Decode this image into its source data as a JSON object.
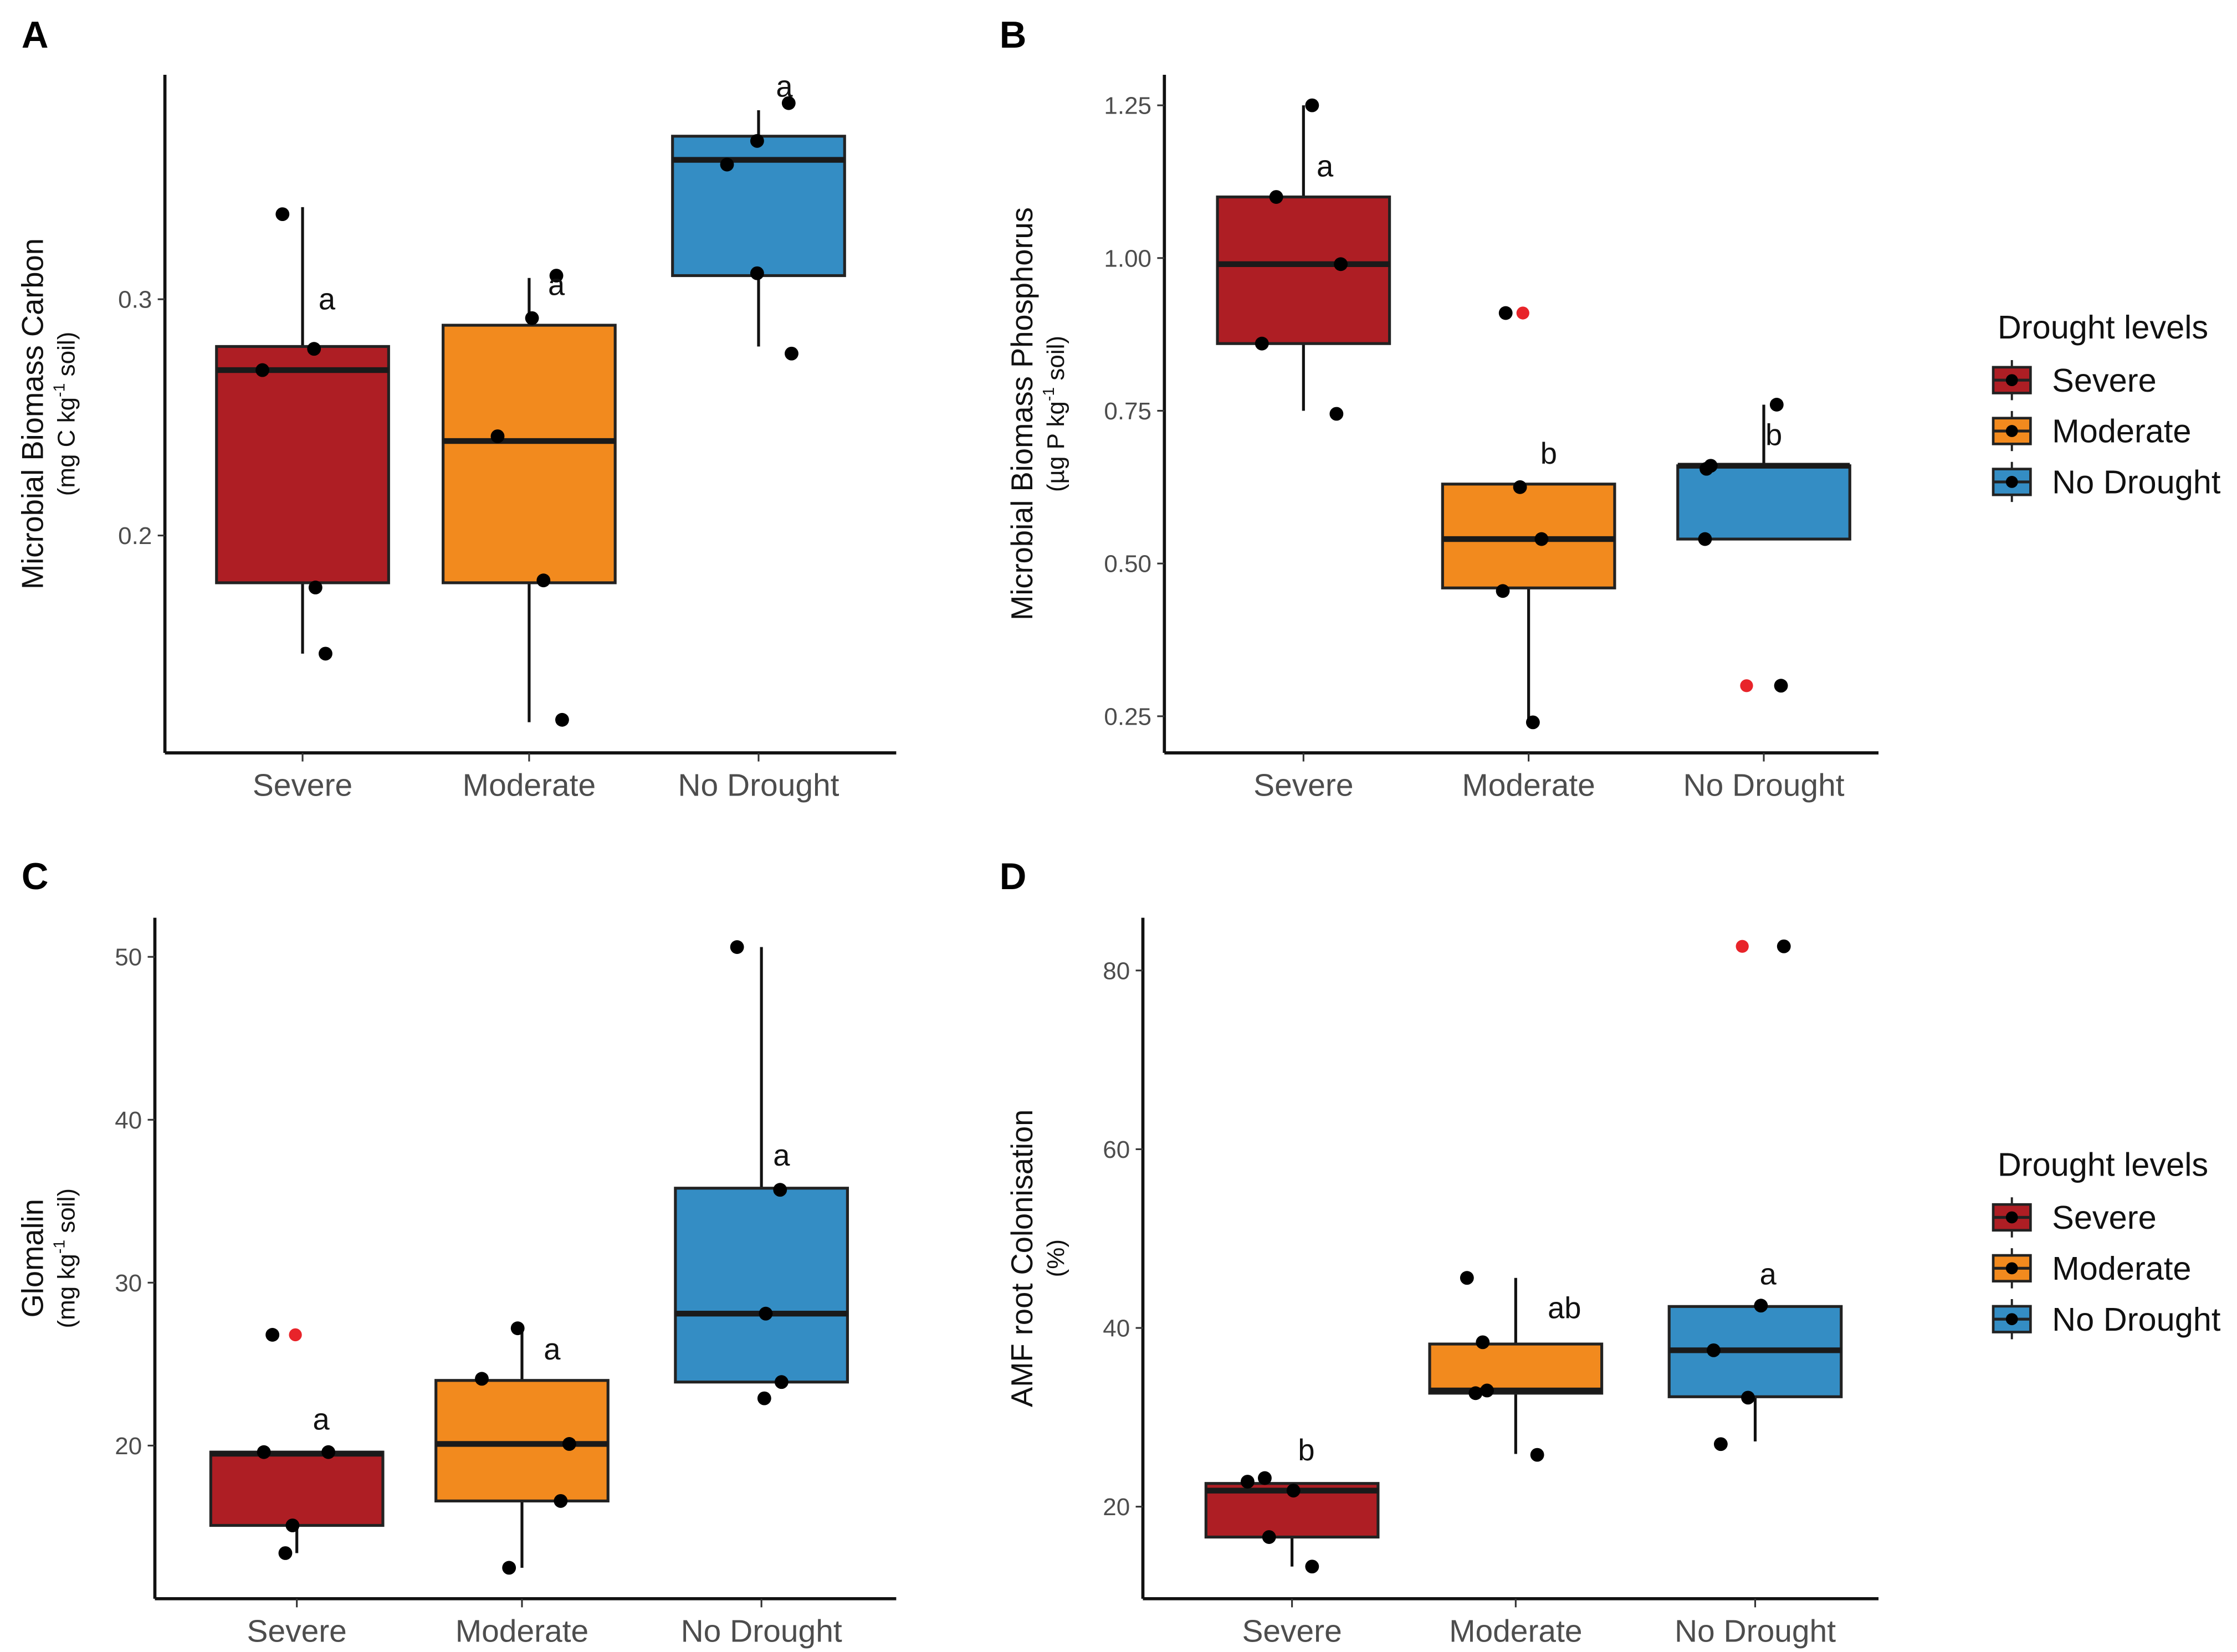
{
  "colors": {
    "Severe": "#ae1e24",
    "Moderate": "#f28a1e",
    "No Drought": "#348dc4",
    "outlier": "#e8242a",
    "point": "#000000"
  },
  "legend": {
    "title": "Drought levels",
    "items": [
      "Severe",
      "Moderate",
      "No Drought"
    ]
  },
  "chart_data": [
    {
      "panel": "A",
      "type": "box",
      "ylabel": "Microbial Biomass Carbon",
      "yunit": {
        "pre": "(mg C kg",
        "sup": "-1",
        "post": " soil)"
      },
      "categories": [
        "Severe",
        "Moderate",
        "No Drought"
      ],
      "yticks": [
        0.2,
        0.3
      ],
      "tick_labels": [
        "0.2",
        "0.3"
      ],
      "ylim": [
        0.108,
        0.395
      ],
      "boxes": [
        {
          "q1": 0.18,
          "median": 0.27,
          "q3": 0.28,
          "wlo": 0.15,
          "whi": 0.339,
          "points": [
            0.336,
            0.279,
            0.27,
            0.178,
            0.15
          ],
          "outliers": [],
          "sig": "a",
          "sig_y": 0.3
        },
        {
          "q1": 0.18,
          "median": 0.24,
          "q3": 0.289,
          "wlo": 0.121,
          "whi": 0.309,
          "points": [
            0.31,
            0.292,
            0.242,
            0.181,
            0.122
          ],
          "outliers": [],
          "sig": "a",
          "sig_y": 0.306
        },
        {
          "q1": 0.31,
          "median": 0.359,
          "q3": 0.369,
          "wlo": 0.28,
          "whi": 0.38,
          "points": [
            0.383,
            0.367,
            0.357,
            0.311,
            0.277
          ],
          "outliers": [],
          "sig": "a",
          "sig_y": 0.39
        }
      ]
    },
    {
      "panel": "B",
      "type": "box",
      "ylabel": "Microbial Biomass Phosphorus",
      "yunit": {
        "pre": "(µg P kg",
        "sup": "-1",
        "post": " soil)"
      },
      "categories": [
        "Severe",
        "Moderate",
        "No Drought"
      ],
      "yticks": [
        0.25,
        0.5,
        0.75,
        1.0,
        1.25
      ],
      "tick_labels": [
        "0.25",
        "0.50",
        "0.75",
        "1.00",
        "1.25"
      ],
      "ylim": [
        0.19,
        1.3
      ],
      "boxes": [
        {
          "q1": 0.86,
          "median": 0.99,
          "q3": 1.1,
          "wlo": 0.75,
          "whi": 1.25,
          "points": [
            1.25,
            1.1,
            0.99,
            0.86,
            0.745
          ],
          "outliers": [],
          "sig": "a",
          "sig_y": 1.15
        },
        {
          "q1": 0.46,
          "median": 0.54,
          "q3": 0.63,
          "wlo": 0.243,
          "whi": 0.63,
          "points": [
            0.91,
            0.625,
            0.54,
            0.455,
            0.24
          ],
          "outliers": [
            0.91
          ],
          "sig": "b",
          "sig_y": 0.68
        },
        {
          "q1": 0.54,
          "median": 0.66,
          "q3": 0.66,
          "wlo": 0.54,
          "whi": 0.76,
          "points": [
            0.76,
            0.66,
            0.655,
            0.54,
            0.3
          ],
          "outliers": [
            0.3
          ],
          "sig": "b",
          "sig_y": 0.71
        }
      ]
    },
    {
      "panel": "C",
      "type": "box",
      "ylabel": "Glomalin",
      "yunit": {
        "pre": "(mg kg",
        "sup": "-1",
        "post": " soil)"
      },
      "categories": [
        "Severe",
        "Moderate",
        "No Drought"
      ],
      "yticks": [
        20,
        30,
        40,
        50
      ],
      "tick_labels": [
        "20",
        "30",
        "40",
        "50"
      ],
      "ylim": [
        10.6,
        52.4
      ],
      "boxes": [
        {
          "q1": 15.1,
          "median": 19.5,
          "q3": 19.6,
          "wlo": 13.4,
          "whi": 19.6,
          "points": [
            26.8,
            19.6,
            19.6,
            15.1,
            13.4
          ],
          "outliers": [
            26.8
          ],
          "sig": "a",
          "sig_y": 21.6
        },
        {
          "q1": 16.6,
          "median": 20.1,
          "q3": 24.0,
          "wlo": 12.5,
          "whi": 27.2,
          "points": [
            27.2,
            24.1,
            20.1,
            16.6,
            12.5
          ],
          "outliers": [],
          "sig": "a",
          "sig_y": 25.9
        },
        {
          "q1": 23.9,
          "median": 28.1,
          "q3": 35.8,
          "wlo": 23.9,
          "whi": 50.6,
          "points": [
            50.6,
            35.7,
            28.1,
            23.9,
            22.9
          ],
          "outliers": [],
          "sig": "a",
          "sig_y": 37.8
        }
      ]
    },
    {
      "panel": "D",
      "type": "box",
      "ylabel": "AMF root Colonisation",
      "yunit": {
        "pre": "(%)",
        "sup": "",
        "post": ""
      },
      "categories": [
        "Severe",
        "Moderate",
        "No Drought"
      ],
      "yticks": [
        20,
        40,
        60,
        80
      ],
      "tick_labels": [
        "20",
        "40",
        "60",
        "80"
      ],
      "ylim": [
        9.7,
        85.9
      ],
      "boxes": [
        {
          "q1": 16.6,
          "median": 21.8,
          "q3": 22.6,
          "wlo": 13.3,
          "whi": 22.6,
          "points": [
            23.2,
            22.8,
            21.8,
            16.6,
            13.3
          ],
          "outliers": [],
          "sig": "b",
          "sig_y": 26.3
        },
        {
          "q1": 32.7,
          "median": 33.0,
          "q3": 38.2,
          "wlo": 25.9,
          "whi": 45.6,
          "points": [
            45.6,
            38.4,
            33.0,
            32.7,
            25.8
          ],
          "outliers": [],
          "sig": "ab",
          "sig_y": 42.2
        },
        {
          "q1": 32.3,
          "median": 37.5,
          "q3": 42.4,
          "wlo": 27.3,
          "whi": 42.4,
          "points": [
            82.7,
            42.5,
            37.5,
            32.2,
            27.0
          ],
          "outliers": [
            82.7
          ],
          "sig": "a",
          "sig_y": 46
        }
      ]
    }
  ]
}
